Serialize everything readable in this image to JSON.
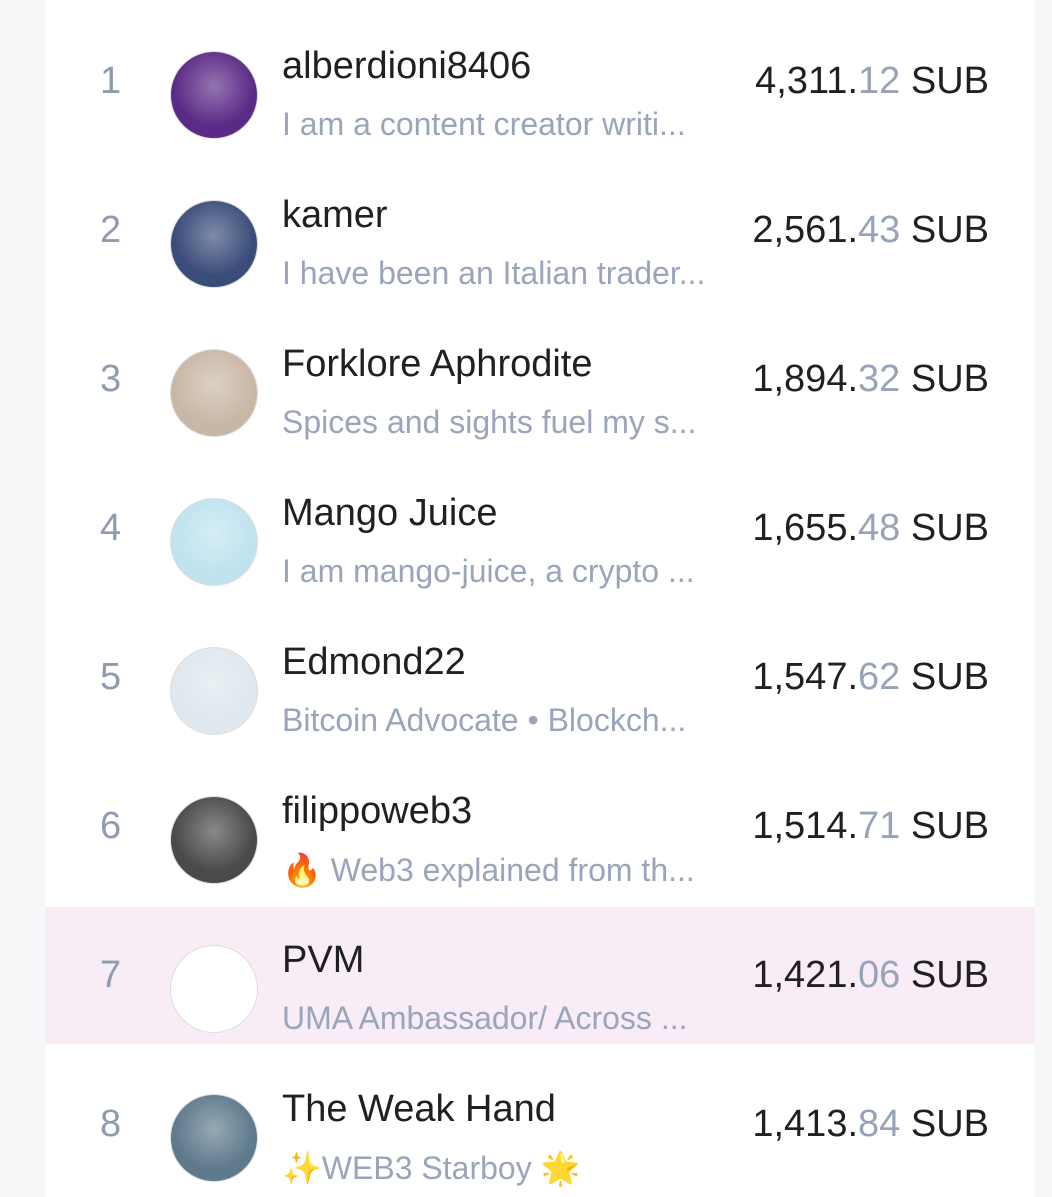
{
  "highlight_color": "#f8edf7",
  "leaderboard": [
    {
      "rank": "1",
      "name": "alberdioni8406",
      "bio": "I am a content creator writi...",
      "int": "4,311.",
      "dec": "12",
      "unit": "SUB",
      "avatar_color": "#5b2a86",
      "highlighted": false
    },
    {
      "rank": "2",
      "name": "kamer",
      "bio": "I have been an Italian trader...",
      "int": "2,561.",
      "dec": "43",
      "unit": "SUB",
      "avatar_color": "#3a4d7a",
      "highlighted": false
    },
    {
      "rank": "3",
      "name": "Forklore Aphrodite",
      "bio": "Spices and sights fuel my s...",
      "int": "1,894.",
      "dec": "32",
      "unit": "SUB",
      "avatar_color": "#c9b7a6",
      "highlighted": false
    },
    {
      "rank": "4",
      "name": "Mango Juice",
      "bio": "I am mango-juice, a crypto ...",
      "int": "1,655.",
      "dec": "48",
      "unit": "SUB",
      "avatar_color": "#bfe3ef",
      "highlighted": false
    },
    {
      "rank": "5",
      "name": "Edmond22",
      "bio": "Bitcoin Advocate • Blockch...",
      "int": "1,547.",
      "dec": "62",
      "unit": "SUB",
      "avatar_color": "#dfe8ee",
      "highlighted": false
    },
    {
      "rank": "6",
      "name": "filippoweb3",
      "bio": "🔥 Web3 explained from th...",
      "int": "1,514.",
      "dec": "71",
      "unit": "SUB",
      "avatar_color": "#4a4a4a",
      "highlighted": false
    },
    {
      "rank": "7",
      "name": "PVM",
      "bio": "UMA Ambassador/ Across ...",
      "int": "1,421.",
      "dec": "06",
      "unit": "SUB",
      "avatar_color": "#ffffff",
      "highlighted": true
    },
    {
      "rank": "8",
      "name": "The Weak Hand",
      "bio": "✨WEB3 Starboy 🌟",
      "int": "1,413.",
      "dec": "84",
      "unit": "SUB",
      "avatar_color": "#5e7a8c",
      "highlighted": false
    }
  ]
}
